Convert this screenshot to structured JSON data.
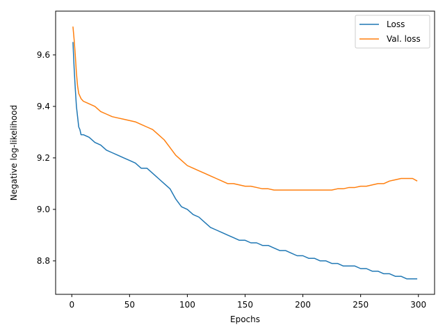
{
  "chart_data": {
    "type": "line",
    "title": "",
    "xlabel": "Epochs",
    "ylabel": "Negative log-likelihood",
    "xlim": [
      -14,
      314
    ],
    "ylim": [
      8.67,
      9.77
    ],
    "x_ticks": [
      0,
      50,
      100,
      150,
      200,
      250,
      300
    ],
    "y_ticks": [
      8.8,
      9.0,
      9.2,
      9.4,
      9.6
    ],
    "x_tick_labels": [
      "0",
      "50",
      "100",
      "150",
      "200",
      "250",
      "300"
    ],
    "y_tick_labels": [
      "8.8",
      "9.0",
      "9.2",
      "9.4",
      "9.6"
    ],
    "grid": false,
    "legend_position": "top-right",
    "x": [
      1,
      2,
      3,
      4,
      5,
      6,
      7,
      8,
      10,
      15,
      20,
      25,
      30,
      35,
      40,
      45,
      50,
      55,
      60,
      65,
      70,
      75,
      80,
      85,
      90,
      95,
      100,
      105,
      110,
      115,
      120,
      125,
      130,
      135,
      140,
      145,
      150,
      155,
      160,
      165,
      170,
      175,
      180,
      185,
      190,
      195,
      200,
      205,
      210,
      215,
      220,
      225,
      230,
      235,
      240,
      245,
      250,
      255,
      260,
      265,
      270,
      275,
      280,
      285,
      290,
      295,
      299
    ],
    "series": [
      {
        "name": "Loss",
        "color": "#1f77b4",
        "values": [
          9.65,
          9.55,
          9.47,
          9.4,
          9.36,
          9.32,
          9.31,
          9.29,
          9.29,
          9.28,
          9.26,
          9.25,
          9.23,
          9.22,
          9.21,
          9.2,
          9.19,
          9.18,
          9.16,
          9.16,
          9.14,
          9.12,
          9.1,
          9.08,
          9.04,
          9.01,
          9.0,
          8.98,
          8.97,
          8.95,
          8.93,
          8.92,
          8.91,
          8.9,
          8.89,
          8.88,
          8.88,
          8.87,
          8.87,
          8.86,
          8.86,
          8.85,
          8.84,
          8.84,
          8.83,
          8.82,
          8.82,
          8.81,
          8.81,
          8.8,
          8.8,
          8.79,
          8.79,
          8.78,
          8.78,
          8.78,
          8.77,
          8.77,
          8.76,
          8.76,
          8.75,
          8.75,
          8.74,
          8.74,
          8.73,
          8.73,
          8.73
        ]
      },
      {
        "name": "Val. loss",
        "color": "#ff7f0e",
        "values": [
          9.71,
          9.66,
          9.6,
          9.53,
          9.48,
          9.45,
          9.44,
          9.43,
          9.42,
          9.41,
          9.4,
          9.38,
          9.37,
          9.36,
          9.355,
          9.35,
          9.345,
          9.34,
          9.33,
          9.32,
          9.31,
          9.29,
          9.27,
          9.24,
          9.21,
          9.19,
          9.17,
          9.16,
          9.15,
          9.14,
          9.13,
          9.12,
          9.11,
          9.1,
          9.1,
          9.095,
          9.09,
          9.09,
          9.085,
          9.08,
          9.08,
          9.075,
          9.075,
          9.075,
          9.075,
          9.075,
          9.075,
          9.075,
          9.075,
          9.075,
          9.075,
          9.075,
          9.08,
          9.08,
          9.085,
          9.085,
          9.09,
          9.09,
          9.095,
          9.1,
          9.1,
          9.11,
          9.115,
          9.12,
          9.12,
          9.12,
          9.11
        ]
      }
    ]
  }
}
